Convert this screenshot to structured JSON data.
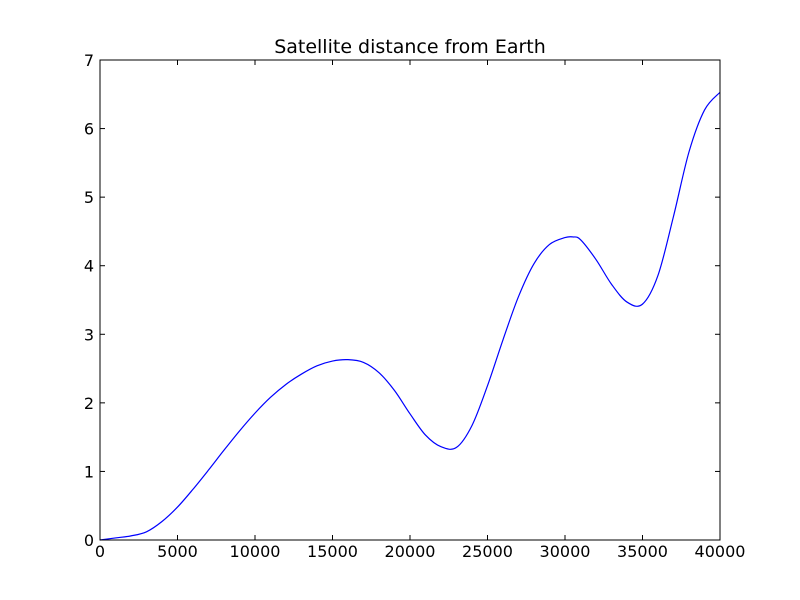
{
  "chart_data": {
    "type": "line",
    "title": "Satellite distance from Earth",
    "xlabel": "",
    "ylabel": "",
    "xlim": [
      0,
      40000
    ],
    "ylim": [
      0,
      7
    ],
    "xticks": [
      0,
      5000,
      10000,
      15000,
      20000,
      25000,
      30000,
      35000,
      40000
    ],
    "yticks": [
      0,
      1,
      2,
      3,
      4,
      5,
      6,
      7
    ],
    "grid": false,
    "series": [
      {
        "color": "#0000ff",
        "x": [
          0,
          1000,
          2000,
          3000,
          4000,
          5000,
          6000,
          7000,
          8000,
          9000,
          10000,
          11000,
          12000,
          13000,
          14000,
          15000,
          16000,
          17000,
          18000,
          19000,
          20000,
          21000,
          22000,
          23000,
          24000,
          25000,
          26000,
          27000,
          28000,
          29000,
          30000,
          30500,
          31000,
          32000,
          33000,
          34000,
          35000,
          36000,
          37000,
          38000,
          39000,
          40000
        ],
        "y": [
          0.0,
          0.03,
          0.06,
          0.12,
          0.27,
          0.48,
          0.74,
          1.02,
          1.31,
          1.59,
          1.85,
          2.08,
          2.27,
          2.42,
          2.54,
          2.61,
          2.63,
          2.59,
          2.44,
          2.18,
          1.84,
          1.53,
          1.36,
          1.35,
          1.67,
          2.25,
          2.92,
          3.55,
          4.03,
          4.31,
          4.41,
          4.42,
          4.38,
          4.09,
          3.73,
          3.47,
          3.44,
          3.86,
          4.72,
          5.66,
          6.27,
          6.53
        ]
      }
    ]
  }
}
